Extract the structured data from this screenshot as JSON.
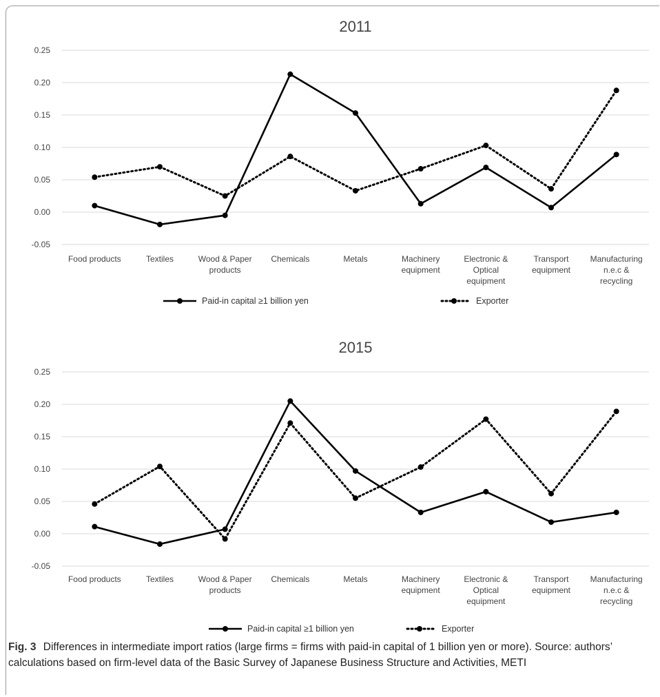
{
  "chart_data": [
    {
      "type": "line",
      "title": "2011",
      "categories": [
        [
          "Food products"
        ],
        [
          "Textiles"
        ],
        [
          "Wood & Paper",
          "products"
        ],
        [
          "Chemicals"
        ],
        [
          "Metals"
        ],
        [
          "Machinery",
          "equipment"
        ],
        [
          "Electronic &",
          "Optical",
          "equipment"
        ],
        [
          "Transport",
          "equipment"
        ],
        [
          "Manufacturing",
          "n.e.c &",
          "recycling"
        ]
      ],
      "ylim": [
        -0.05,
        0.25
      ],
      "yticks": [
        "0.25",
        "0.20",
        "0.15",
        "0.10",
        "0.05",
        "0.00",
        "-0.05"
      ],
      "grid": true,
      "legend_position": "bottom",
      "series": [
        {
          "name": "Paid-in capital ≥1 billion yen",
          "style": "solid",
          "values": [
            0.01,
            -0.019,
            -0.005,
            0.213,
            0.153,
            0.013,
            0.069,
            0.007,
            0.089
          ]
        },
        {
          "name": "Exporter",
          "style": "dotted",
          "values": [
            0.054,
            0.07,
            0.025,
            0.086,
            0.033,
            0.067,
            0.103,
            0.036,
            0.188
          ]
        }
      ]
    },
    {
      "type": "line",
      "title": "2015",
      "categories": [
        [
          "Food products"
        ],
        [
          "Textiles"
        ],
        [
          "Wood & Paper",
          "products"
        ],
        [
          "Chemicals"
        ],
        [
          "Metals"
        ],
        [
          "Machinery",
          "equipment"
        ],
        [
          "Electronic &",
          "Optical",
          "equipment"
        ],
        [
          "Transport",
          "equipment"
        ],
        [
          "Manufacturing",
          "n.e.c &",
          "recycling"
        ]
      ],
      "ylim": [
        -0.05,
        0.25
      ],
      "yticks": [
        "0.25",
        "0.20",
        "0.15",
        "0.10",
        "0.05",
        "0.00",
        "-0.05"
      ],
      "grid": true,
      "legend_position": "bottom",
      "series": [
        {
          "name": "Paid-in capital ≥1 billion yen",
          "style": "solid",
          "values": [
            0.011,
            -0.016,
            0.007,
            0.205,
            0.097,
            0.033,
            0.065,
            0.018,
            0.033
          ]
        },
        {
          "name": "Exporter",
          "style": "dotted",
          "values": [
            0.046,
            0.104,
            -0.008,
            0.171,
            0.055,
            0.103,
            0.177,
            0.062,
            0.189
          ]
        }
      ]
    }
  ],
  "caption": {
    "label": "Fig. 3",
    "text": "Differences in intermediate import ratios (large firms = firms with paid-in capital of 1 billion yen or more). Source: authors’ calculations based on firm-level data of the Basic Survey of Japanese Business Structure and Activities, METI"
  },
  "colors": {
    "line": "#000000",
    "grid": "#d9d9d9",
    "text": "#444444"
  }
}
